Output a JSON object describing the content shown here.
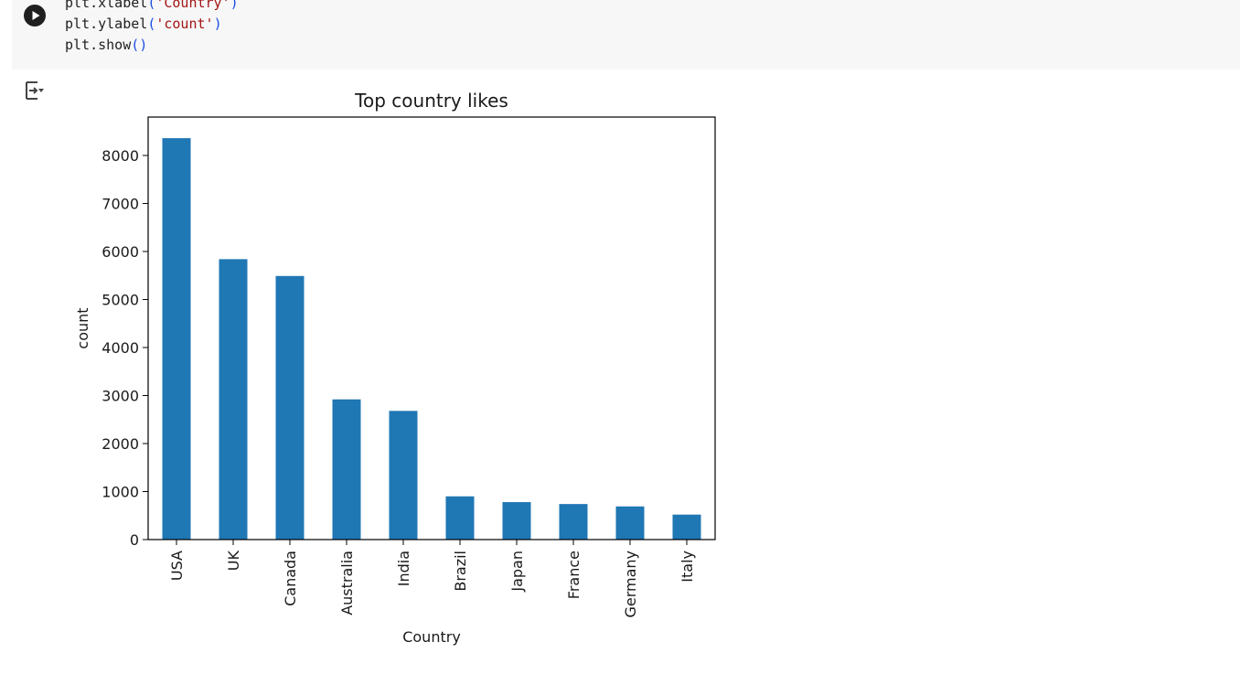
{
  "cell": {
    "code_lines": [
      {
        "obj": "plt.",
        "fn": "xlabel",
        "open": "(",
        "arg": "'Country'",
        "close": ")"
      },
      {
        "obj": "plt.",
        "fn": "ylabel",
        "open": "(",
        "arg": "'count'",
        "close": ")"
      },
      {
        "obj": "plt.",
        "fn": "show",
        "open": "(",
        "arg": "",
        "close": ")"
      }
    ]
  },
  "icons": {
    "run": "play-circle-icon",
    "output_toggle": "output-toggle-icon"
  },
  "colors": {
    "bar": "#1f77b4",
    "cell_bg": "#f7f7f7"
  },
  "chart_data": {
    "type": "bar",
    "title": "Top country likes",
    "xlabel": "Country",
    "ylabel": "count",
    "categories": [
      "USA",
      "UK",
      "Canada",
      "Australia",
      "India",
      "Brazil",
      "Japan",
      "France",
      "Germany",
      "Italy"
    ],
    "values": [
      8360,
      5840,
      5490,
      2920,
      2680,
      900,
      780,
      740,
      690,
      520
    ],
    "ylim": [
      0,
      8800
    ],
    "yticks": [
      0,
      1000,
      2000,
      3000,
      4000,
      5000,
      6000,
      7000,
      8000
    ],
    "grid": false,
    "legend": "none"
  }
}
